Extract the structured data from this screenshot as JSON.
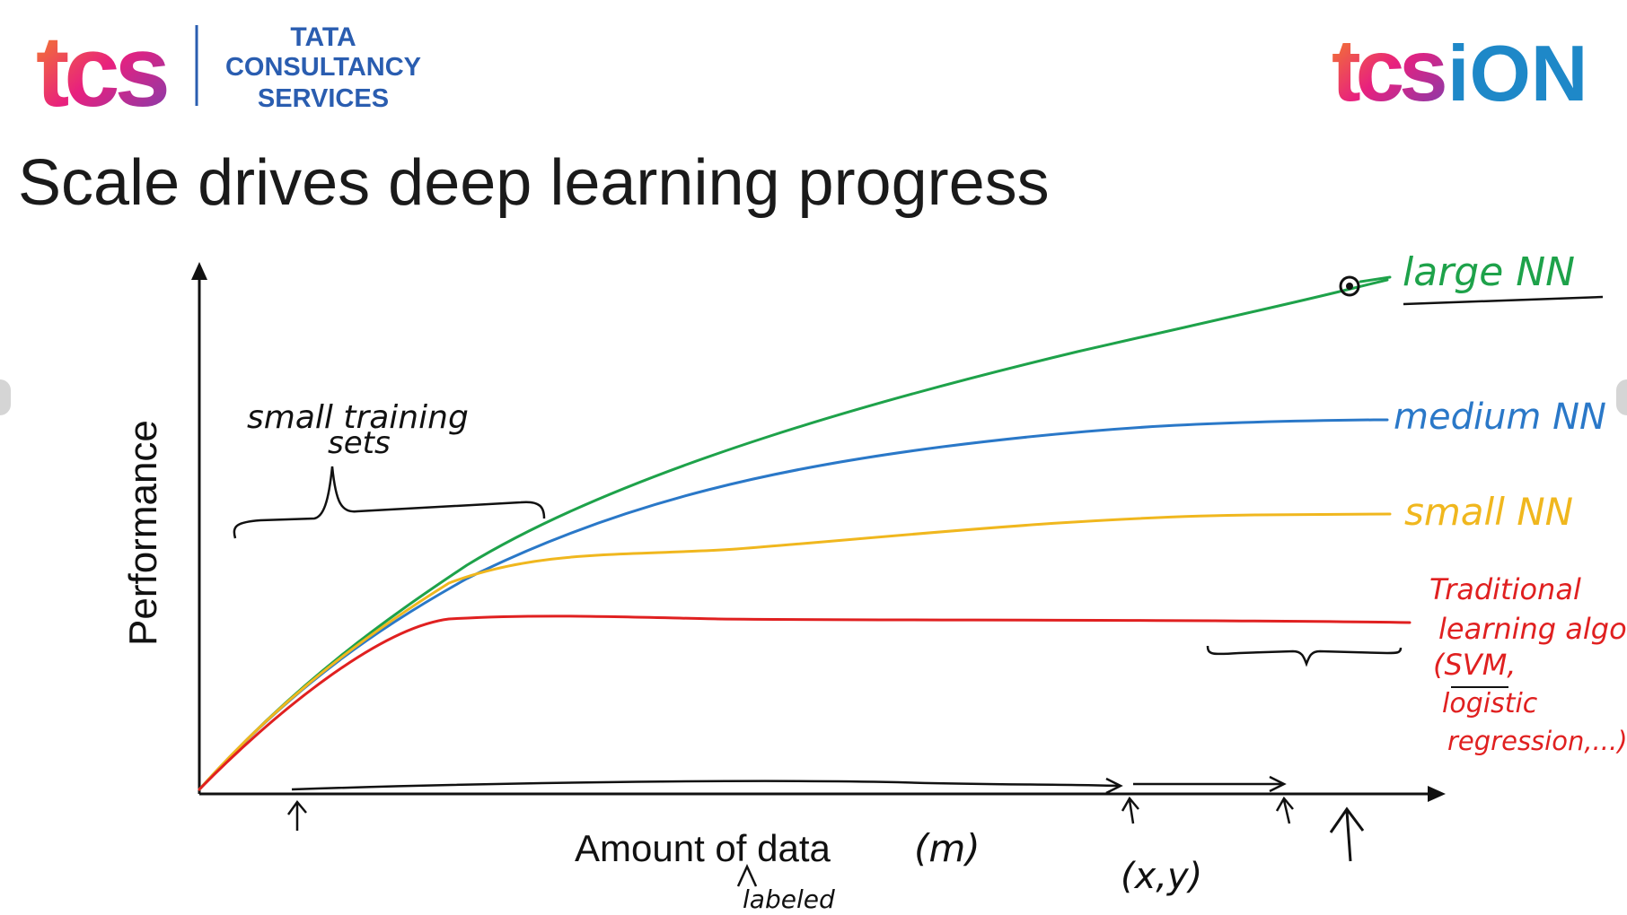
{
  "header": {
    "left_logo_mark": "tcs",
    "left_logo_text": [
      "TATA",
      "CONSULTANCY",
      "SERVICES"
    ],
    "right_logo_mark": "tcs",
    "right_logo_suffix": "iON"
  },
  "slide": {
    "title": "Scale drives deep learning progress"
  },
  "diagram": {
    "y_axis_label": "Performance",
    "x_axis_label": "Amount of data",
    "x_axis_note": "(m)",
    "x_axis_annotation": "labeled",
    "xy_note": "(x,y)",
    "small_sets_note_line1": "small training",
    "small_sets_note_line2": "sets",
    "curves": [
      {
        "name": "large NN",
        "color": "#1ea24a"
      },
      {
        "name": "medium NN",
        "color": "#2a78c8"
      },
      {
        "name": "small NN",
        "color": "#f0b71e"
      },
      {
        "name": "traditional",
        "color": "#e02020"
      }
    ],
    "labels": {
      "large": "large NN",
      "medium": "medium NN",
      "small": "small NN",
      "trad_line1": "Traditional",
      "trad_line2": "learning algo",
      "trad_line3": "(SVM,",
      "trad_line4": "logistic",
      "trad_line5": "regression,...)"
    }
  }
}
